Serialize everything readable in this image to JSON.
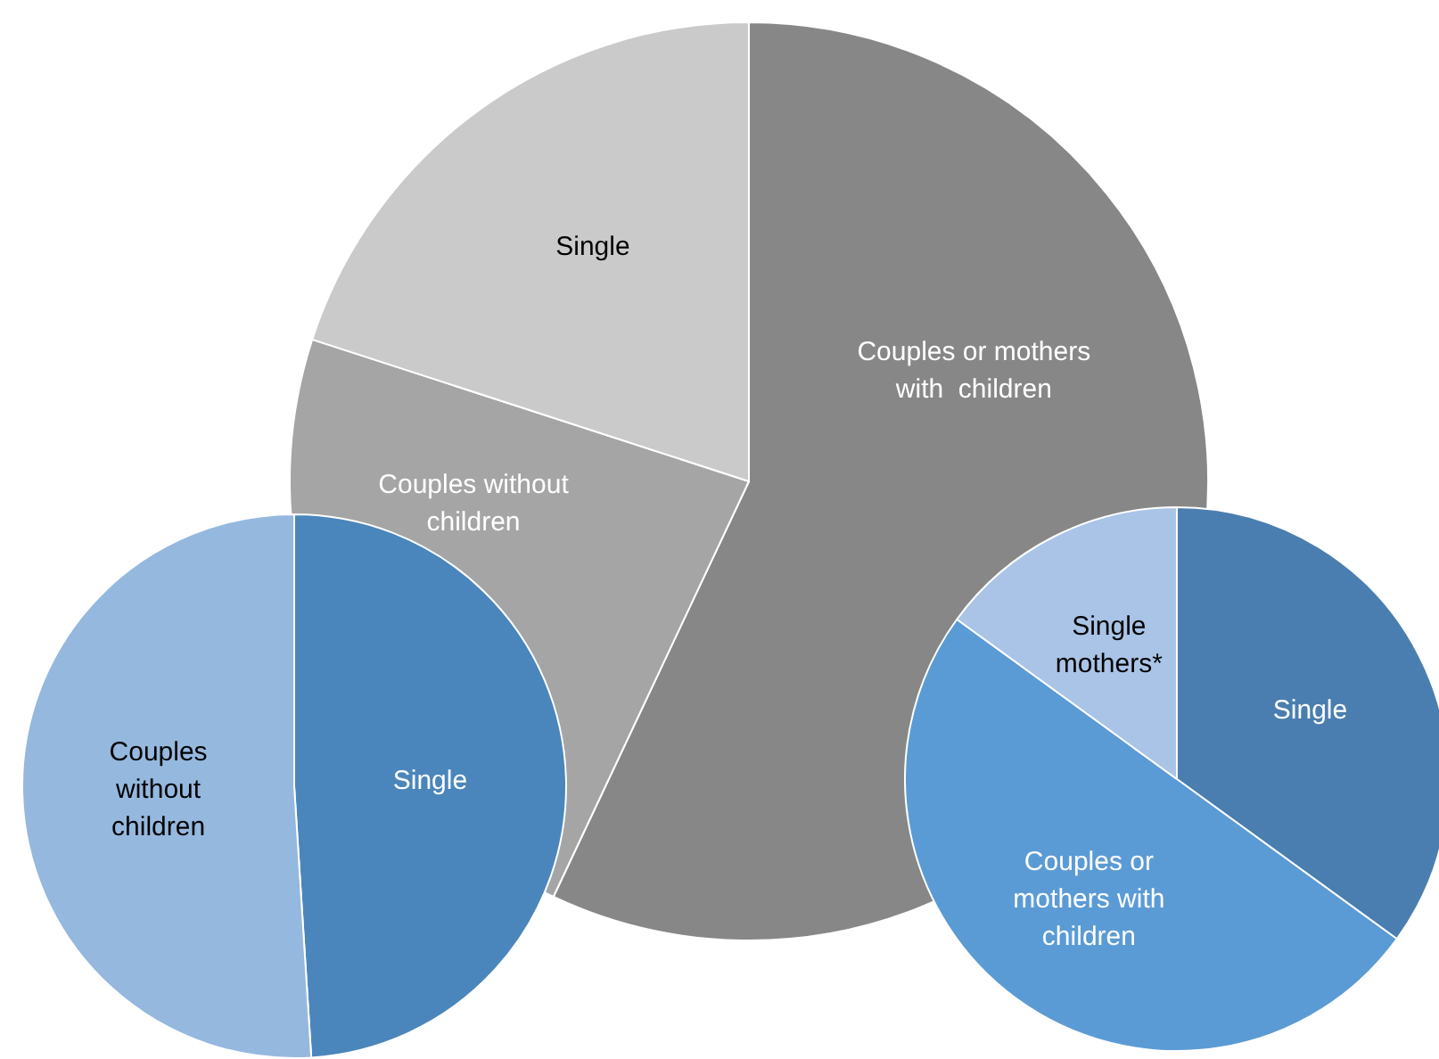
{
  "chart_data": [
    {
      "type": "pie",
      "categories": [
        "Couples or mothers with  children",
        "Couples without children",
        "Single"
      ],
      "values": [
        57,
        23,
        20
      ],
      "colors": [
        "#878787",
        "#a5a5a5",
        "#cacaca"
      ]
    },
    {
      "type": "pie",
      "categories": [
        "Single",
        "Couples without children"
      ],
      "values": [
        49,
        51
      ],
      "colors": [
        "#4a86bb",
        "#95b8de"
      ]
    },
    {
      "type": "pie",
      "categories": [
        "Single",
        "Couples or mothers with children",
        "Single mothers*"
      ],
      "values": [
        35,
        50,
        15
      ],
      "colors": [
        "#4a7eb0",
        "#5b9bd5",
        "#a9c4e6"
      ]
    }
  ]
}
